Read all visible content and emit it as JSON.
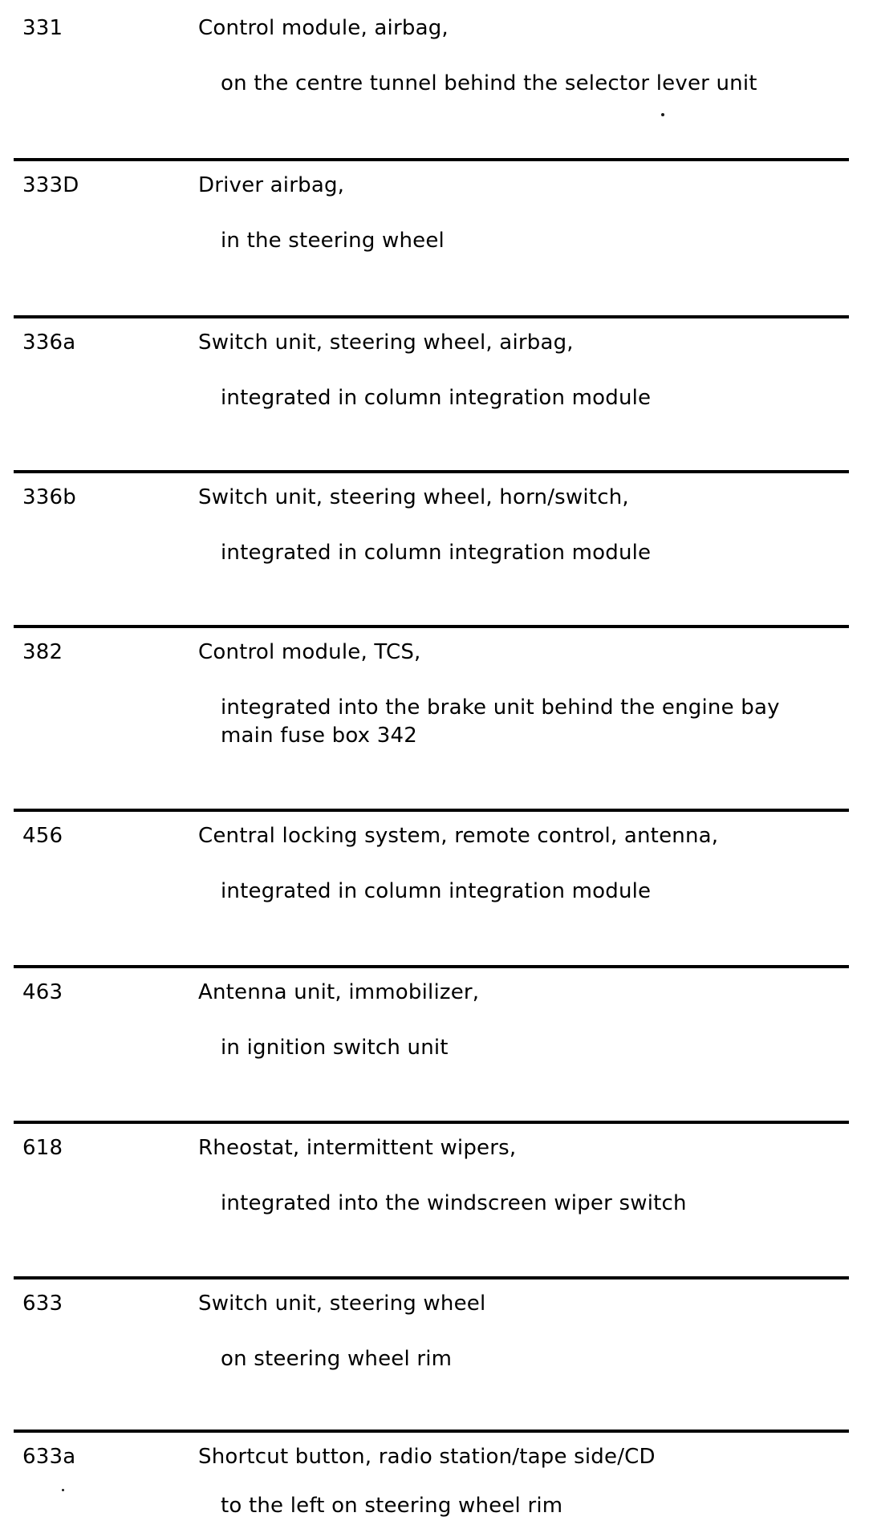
{
  "page": {
    "background_color": "#ffffff",
    "text_color": "#000000",
    "divider_color": "#000000",
    "description": "Scanned wiring-manual component list: code and description/location pairs separated by thick horizontal rules"
  },
  "rows": [
    {
      "code": "331",
      "name": "Control module, airbag,",
      "location_lines": [
        "on the centre tunnel behind the selector lever unit"
      ]
    },
    {
      "code": "333D",
      "name": "Driver airbag,",
      "location_lines": [
        "in the steering wheel"
      ]
    },
    {
      "code": "336a",
      "name": "Switch unit, steering wheel, airbag,",
      "location_lines": [
        "integrated in column integration module"
      ]
    },
    {
      "code": "336b",
      "name": "Switch unit, steering wheel, horn/switch,",
      "location_lines": [
        "integrated in column integration module"
      ]
    },
    {
      "code": "382",
      "name": "Control module, TCS,",
      "location_lines": [
        "integrated into the brake unit behind the engine bay",
        "main fuse box 342"
      ]
    },
    {
      "code": "456",
      "name": "Central locking system, remote control, antenna,",
      "location_lines": [
        "integrated in column integration module"
      ]
    },
    {
      "code": "463",
      "name": "Antenna unit, immobilizer,",
      "location_lines": [
        "in ignition switch unit"
      ]
    },
    {
      "code": "618",
      "name": "Rheostat, intermittent wipers,",
      "location_lines": [
        "integrated into the windscreen wiper switch"
      ]
    },
    {
      "code": "633",
      "name": "Switch unit, steering wheel",
      "location_lines": [
        "on steering wheel rim"
      ]
    },
    {
      "code": "633a",
      "name": "Shortcut button, radio station/tape side/CD",
      "location_lines": [
        "to the left on steering wheel rim"
      ]
    }
  ]
}
